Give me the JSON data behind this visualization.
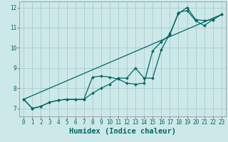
{
  "xlabel": "Humidex (Indice chaleur)",
  "bg_color": "#cde8e8",
  "grid_color": "#aacccc",
  "line_color": "#006666",
  "xlim": [
    -0.5,
    23.5
  ],
  "ylim": [
    6.6,
    12.3
  ],
  "xticks": [
    0,
    1,
    2,
    3,
    4,
    5,
    6,
    7,
    8,
    9,
    10,
    11,
    12,
    13,
    14,
    15,
    16,
    17,
    18,
    19,
    20,
    21,
    22,
    23
  ],
  "yticks": [
    7,
    8,
    9,
    10,
    11,
    12
  ],
  "series1_x": [
    0,
    1,
    2,
    3,
    4,
    5,
    6,
    7,
    8,
    9,
    10,
    11,
    12,
    13,
    14,
    15,
    16,
    17,
    18,
    19,
    20,
    21,
    22,
    23
  ],
  "series1_y": [
    7.45,
    7.0,
    7.1,
    7.3,
    7.4,
    7.45,
    7.45,
    7.45,
    8.55,
    8.6,
    8.55,
    8.45,
    8.25,
    8.2,
    8.25,
    9.85,
    10.3,
    10.65,
    11.75,
    11.85,
    11.35,
    11.1,
    11.4,
    11.65
  ],
  "series2_x": [
    0,
    1,
    2,
    3,
    4,
    5,
    6,
    7,
    8,
    9,
    10,
    11,
    12,
    13,
    14,
    15,
    16,
    17,
    18,
    19,
    20,
    21,
    22,
    23
  ],
  "series2_y": [
    7.45,
    7.0,
    7.1,
    7.3,
    7.4,
    7.45,
    7.45,
    7.45,
    7.75,
    8.0,
    8.2,
    8.5,
    8.5,
    9.0,
    8.5,
    8.5,
    9.9,
    10.7,
    11.7,
    12.0,
    11.4,
    11.35,
    11.4,
    11.65
  ],
  "series3_x": [
    0,
    23
  ],
  "series3_y": [
    7.45,
    11.65
  ],
  "font_family": "monospace",
  "tick_fontsize": 5.5,
  "label_fontsize": 7.5
}
